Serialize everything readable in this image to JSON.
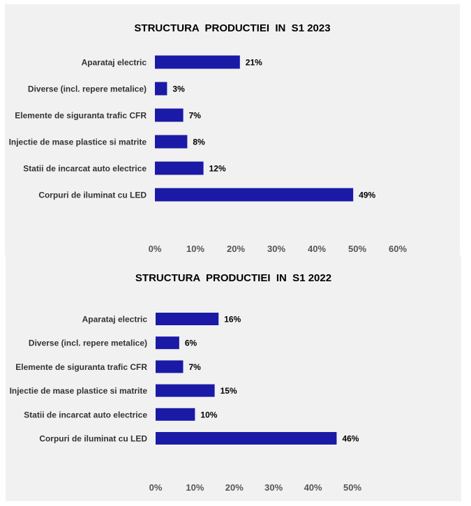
{
  "colors": {
    "bar": "#1a1aa6",
    "panel": "#f1f1f1",
    "text": "#000000"
  },
  "chart_data": [
    {
      "type": "bar",
      "orientation": "horizontal",
      "title": "STRUCTURA  PRODUCTIEI  IN  S1 2023",
      "categories": [
        "Aparataj electric",
        "Diverse (incl. repere metalice)",
        "Elemente de siguranta trafic CFR",
        "Injectie de mase plastice si matrite",
        "Statii de incarcat auto electrice",
        "Corpuri de iluminat cu LED"
      ],
      "values": [
        21,
        3,
        7,
        8,
        12,
        49
      ],
      "data_labels": [
        "21%",
        "3%",
        "7%",
        "8%",
        "12%",
        "49%"
      ],
      "xlim": [
        0,
        60
      ],
      "xticks": [
        "0%",
        "10%",
        "20%",
        "30%",
        "40%",
        "50%",
        "60%"
      ],
      "grid": false,
      "legend": "none"
    },
    {
      "type": "bar",
      "orientation": "horizontal",
      "title": "STRUCTURA  PRODUCTIEI  IN  S1 2022",
      "categories": [
        "Aparataj electric",
        "Diverse (incl. repere metalice)",
        "Elemente de siguranta trafic CFR",
        "Injectie de mase plastice si matrite",
        "Statii de incarcat auto electrice",
        "Corpuri de iluminat cu LED"
      ],
      "values": [
        16,
        6,
        7,
        15,
        10,
        46
      ],
      "data_labels": [
        "16%",
        "6%",
        "7%",
        "15%",
        "10%",
        "46%"
      ],
      "xlim": [
        0,
        50
      ],
      "xticks": [
        "0%",
        "10%",
        "20%",
        "30%",
        "40%",
        "50%"
      ],
      "grid": false,
      "legend": "none"
    }
  ]
}
